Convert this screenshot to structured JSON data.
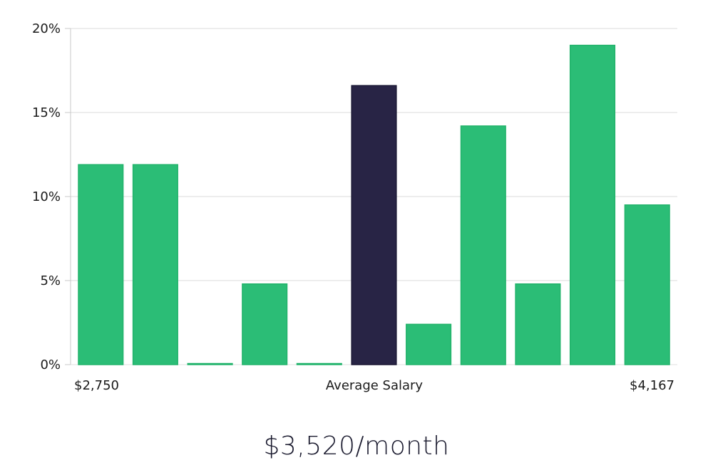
{
  "chart_data": {
    "type": "bar",
    "y_ticks": [
      "0%",
      "5%",
      "10%",
      "15%",
      "20%"
    ],
    "y_tick_values": [
      0,
      5,
      10,
      15,
      20
    ],
    "ylim": [
      0,
      20
    ],
    "values": [
      11.9,
      11.9,
      0,
      4.8,
      0,
      16.6,
      2.4,
      14.2,
      4.8,
      19.0,
      9.5
    ],
    "highlight_index": 5,
    "x_labels": {
      "left": "$2,750",
      "center": "Average Salary",
      "right": "$4,167"
    },
    "grid": true,
    "colors": {
      "bar": "#2bbd76",
      "bar_border": "#22b36b",
      "highlight": "#282445",
      "grid": "#e2e2e2",
      "axis": "#c8c8c8"
    }
  },
  "footer": {
    "salary": "$3,520/month"
  }
}
